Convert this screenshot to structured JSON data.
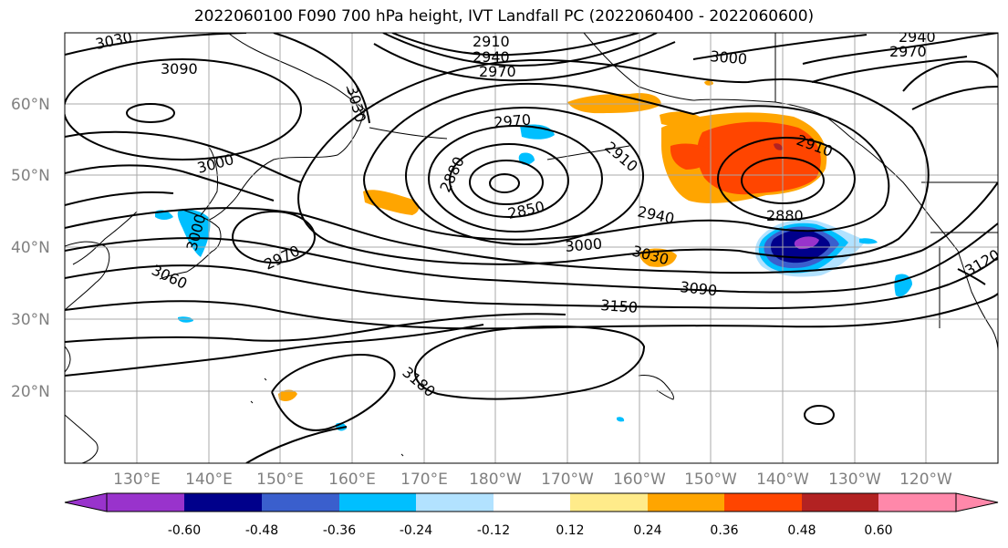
{
  "title": "2022060100 F090 700 hPa height, IVT Landfall PC (2022060400 - 2022060600)",
  "lat_labels": [
    "60°N",
    "50°N",
    "40°N",
    "30°N",
    "20°N"
  ],
  "lon_labels": [
    "130°E",
    "140°E",
    "150°E",
    "160°E",
    "170°E",
    "180°W",
    "170°W",
    "160°W",
    "150°W",
    "140°W",
    "130°W",
    "120°W"
  ],
  "colorbar": {
    "ticks": [
      "-0.60",
      "-0.48",
      "-0.36",
      "-0.24",
      "-0.12",
      "0.12",
      "0.24",
      "0.36",
      "0.48",
      "0.60"
    ],
    "colors": [
      "#9933cc",
      "#00008b",
      "#3a5fcd",
      "#00bfff",
      "#b2e2ff",
      "#ffffff",
      "#ffeb8a",
      "#ffa500",
      "#ff4500",
      "#b22222",
      "#ff88aa"
    ]
  },
  "contour_labels": {
    "l3030_nw": "3030",
    "l3090_nw": "3090",
    "l3000_nw": "3000",
    "l2910_top": "2910",
    "l2940_top": "2940",
    "l2970_top": "2970",
    "l3030_kam": "3030",
    "l2970_mid": "2970",
    "l2880_low": "2880",
    "l2910_mid": "2910",
    "l2850_low": "2850",
    "l3000_top_r": "3000",
    "l2940_tr": "2940",
    "l2970_tr": "2970",
    "l2910_gulf": "2910",
    "l2880_gulf": "2880",
    "l2940_gulf": "2940",
    "l3000_mid": "3000",
    "l3030_mid": "3030",
    "l3090_mid": "3090",
    "l3150_mid": "3150",
    "l3180_high": "3180",
    "l3000_jp": "3000",
    "l2970_jp": "2970",
    "l3060_jp": "3060",
    "l3120_e": "3120"
  }
}
